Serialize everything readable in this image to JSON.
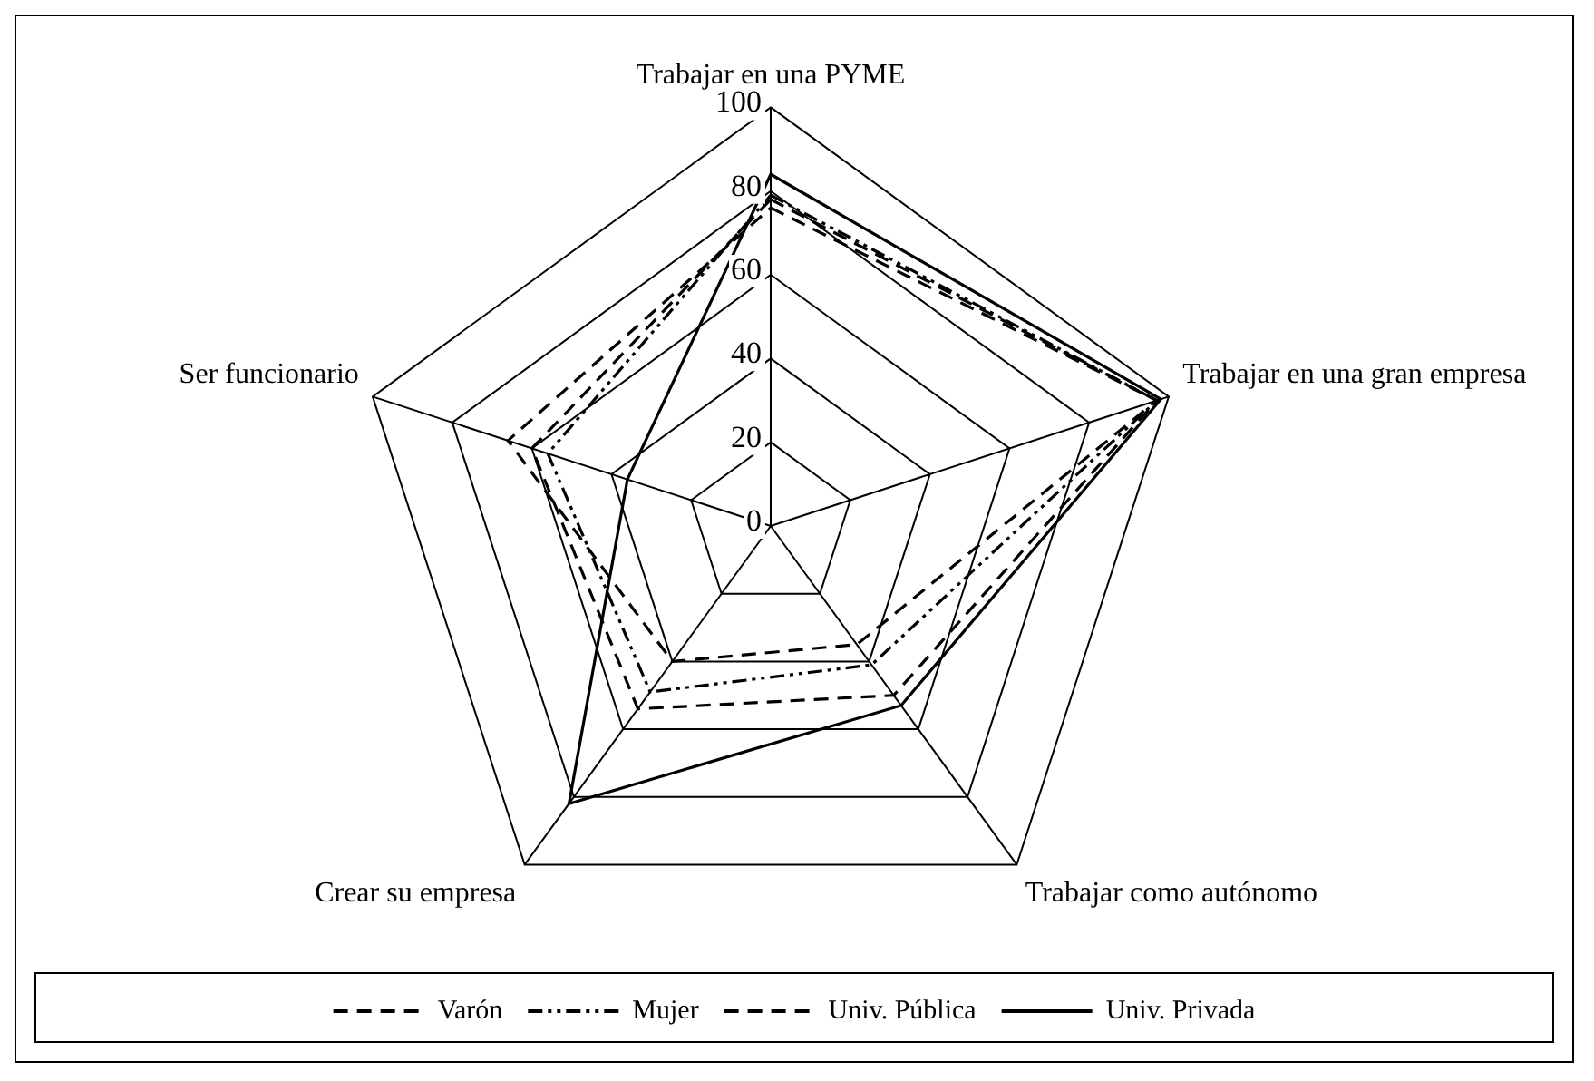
{
  "chart_data": {
    "type": "radar",
    "categories": [
      "Trabajar en una PYME",
      "Trabajar en una gran empresa",
      "Trabajar como autónomo",
      "Crear su empresa",
      "Ser funcionario"
    ],
    "ylim": [
      0,
      100
    ],
    "yticks": [
      0,
      20,
      40,
      60,
      80,
      100
    ],
    "grid": true,
    "legend": "bottom",
    "marker": "none",
    "series": [
      {
        "name": "Varón",
        "color": "#000000",
        "line_style": "dashed",
        "values": [
          78,
          97,
          50,
          54,
          60
        ]
      },
      {
        "name": "Mujer",
        "color": "#000000",
        "line_style": "dashdot",
        "values": [
          79,
          97,
          41,
          49,
          56
        ]
      },
      {
        "name": "Univ. Pública",
        "color": "#000000",
        "line_style": "dashed",
        "values": [
          76,
          97,
          35,
          40,
          66
        ]
      },
      {
        "name": "Univ. Privada",
        "color": "#000000",
        "line_style": "solid",
        "values": [
          84,
          98,
          53,
          82,
          36
        ]
      }
    ]
  }
}
